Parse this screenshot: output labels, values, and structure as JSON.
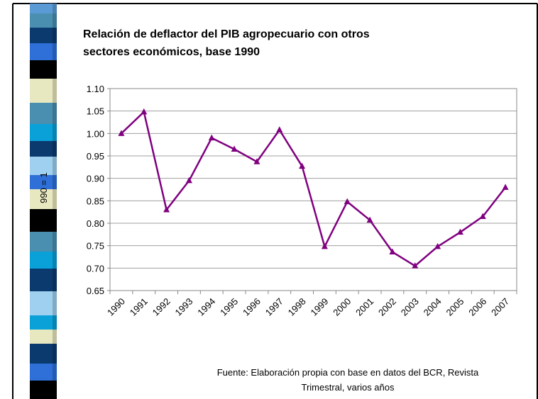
{
  "chart_data": {
    "type": "line",
    "title": [
      "Relación de deflactor del PIB agropecuario con otros",
      "sectores económicos, base 1990"
    ],
    "y_label": "990 = 1",
    "categories": [
      "1990",
      "1991",
      "1992",
      "1993",
      "1994",
      "1995",
      "1996",
      "1997",
      "1998",
      "1999",
      "2000",
      "2001",
      "2002",
      "2003",
      "2004",
      "2005",
      "2006",
      "2007"
    ],
    "series": [
      {
        "color": "#800080",
        "values": [
          1.0,
          1.048,
          0.83,
          0.895,
          0.99,
          0.965,
          0.937,
          1.008,
          0.927,
          0.748,
          0.848,
          0.807,
          0.736,
          0.705,
          0.748,
          0.78,
          0.815,
          0.88
        ]
      }
    ],
    "ylim": [
      0.65,
      1.1
    ],
    "yticks": [
      0.65,
      {
        "value": 0.7,
        "label": "0.70"
      },
      0.75,
      {
        "value": 0.8,
        "label": "0.80"
      },
      0.85,
      {
        "value": 0.9,
        "label": "0.90"
      },
      0.95,
      {
        "value": 1.0,
        "label": "1.00"
      },
      1.05,
      {
        "value": 1.1,
        "label": "1.10"
      }
    ],
    "grid": true,
    "source": [
      "Fuente:  Elaboración propia con base en datos del BCR, Revista",
      "Trimestral, varios años"
    ]
  }
}
